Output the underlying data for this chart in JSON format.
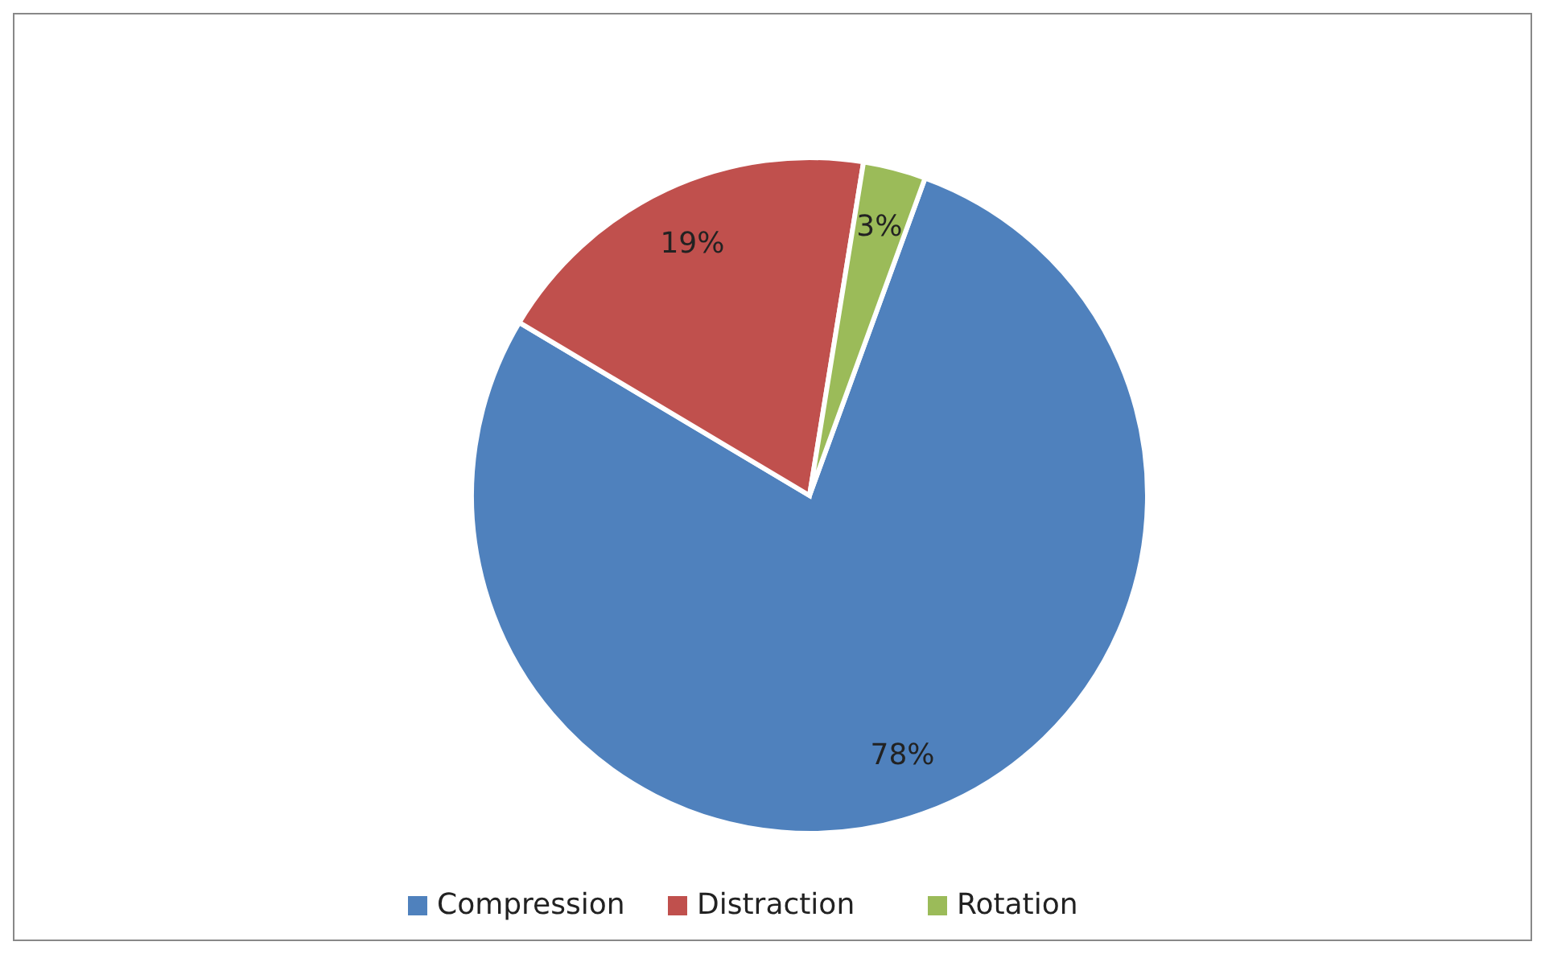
{
  "chart_data": {
    "type": "pie",
    "categories": [
      "Compression",
      "Distraction",
      "Rotation"
    ],
    "values": [
      78,
      19,
      3
    ],
    "colors": [
      "#4f81bd",
      "#c0504d",
      "#9bbb59"
    ],
    "value_labels": [
      "78%",
      "19%",
      "3%"
    ],
    "legend": "bottom"
  }
}
